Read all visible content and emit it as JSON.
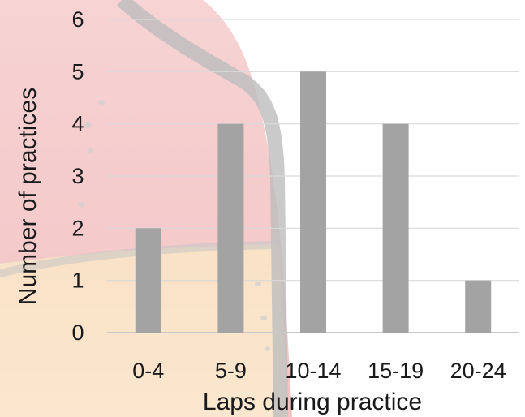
{
  "chart_data": {
    "type": "bar",
    "categories": [
      "0-4",
      "5-9",
      "10-14",
      "15-19",
      "20-24"
    ],
    "values": [
      2,
      4,
      5,
      4,
      1
    ],
    "title": "",
    "xlabel": "Laps during practice",
    "ylabel": "Number of practices",
    "ylim": [
      0,
      6
    ],
    "yticks": [
      "0",
      "1",
      "2",
      "3",
      "4",
      "5",
      "6"
    ],
    "grid": "horizontal",
    "legend": "none",
    "colors": {
      "bar": "#a3a3a3",
      "grid": "#d9d9d9",
      "background_upper": "#f6cfcf",
      "background_lower": "#f8dcba",
      "decor_stroke": "#bdbdbd"
    }
  }
}
